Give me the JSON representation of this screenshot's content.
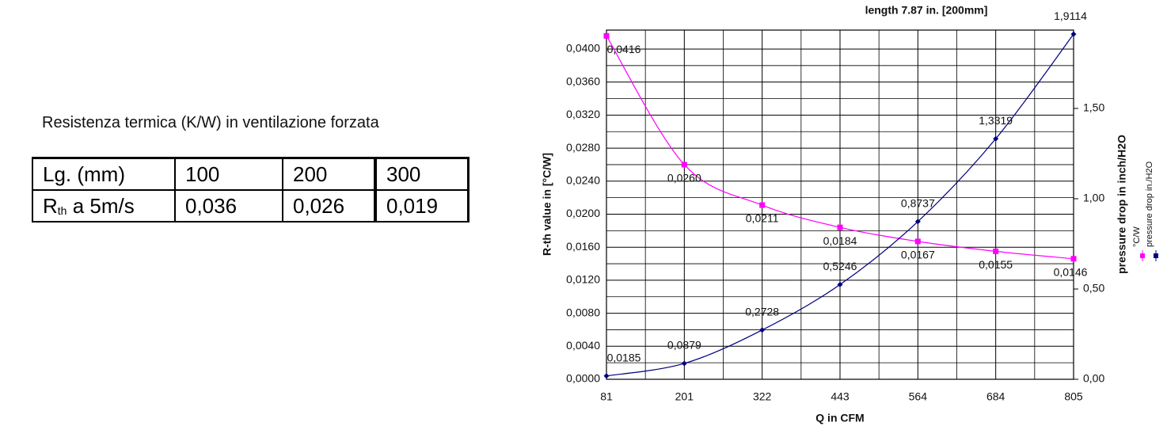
{
  "table": {
    "caption": "Resistenza termica (K/W) in ventilazione forzata",
    "header": [
      "Lg. (mm)",
      "100",
      "200",
      "300"
    ],
    "row": {
      "label": {
        "main": "R",
        "sub": "th",
        "rest": " a 5m/s"
      },
      "cells": [
        "0,036",
        "0,026",
        "0,019"
      ]
    }
  },
  "chart_data": {
    "type": "line",
    "title": "length 7.87 in. [200mm]",
    "x_label": "Q in CFM",
    "y_label": "R-th value in [°C/W]",
    "y2_label": "pressure drop in inch/H2O",
    "categories": [
      "81",
      "201",
      "322",
      "443",
      "564",
      "684",
      "805"
    ],
    "ylim": [
      0,
      0.0423
    ],
    "yticks": [
      {
        "value": 0,
        "label": "0,0000"
      },
      {
        "value": 0.004,
        "label": "0,0040"
      },
      {
        "value": 0.008,
        "label": "0,0080"
      },
      {
        "value": 0.012,
        "label": "0,0120"
      },
      {
        "value": 0.016,
        "label": "0,0160"
      },
      {
        "value": 0.02,
        "label": "0,0200"
      },
      {
        "value": 0.024,
        "label": "0,0240"
      },
      {
        "value": 0.028,
        "label": "0,0280"
      },
      {
        "value": 0.032,
        "label": "0,0320"
      },
      {
        "value": 0.036,
        "label": "0,0360"
      },
      {
        "value": 0.04,
        "label": "0,0400"
      }
    ],
    "y2lim": [
      0,
      1.934
    ],
    "y2ticks": [
      {
        "value": 0,
        "label": "0,00"
      },
      {
        "value": 0.5,
        "label": "0,50"
      },
      {
        "value": 1,
        "label": "1,00"
      },
      {
        "value": 1.5,
        "label": "1,50"
      }
    ],
    "grid": true,
    "legend": "right",
    "series": [
      {
        "name": "°C/W",
        "color": "#ff00ff",
        "values": [
          0.0416,
          0.026,
          0.0211,
          0.0184,
          0.0167,
          0.0155,
          0.0146
        ],
        "value_labels": [
          "0,0416",
          "0,0260",
          "0,0211",
          "0,0184",
          "0,0167",
          "0,0155",
          "0,0146"
        ]
      },
      {
        "name": "pressure drop in./H2O",
        "color": "#000080",
        "axis": "y2",
        "values": [
          0.0185,
          0.0879,
          0.2728,
          0.5246,
          0.8737,
          1.3319,
          1.9114
        ],
        "value_labels": [
          "0,0185",
          "0,0879",
          "0,2728",
          "0,5246",
          "0,8737",
          "1,3319",
          "1,9114"
        ]
      }
    ]
  }
}
